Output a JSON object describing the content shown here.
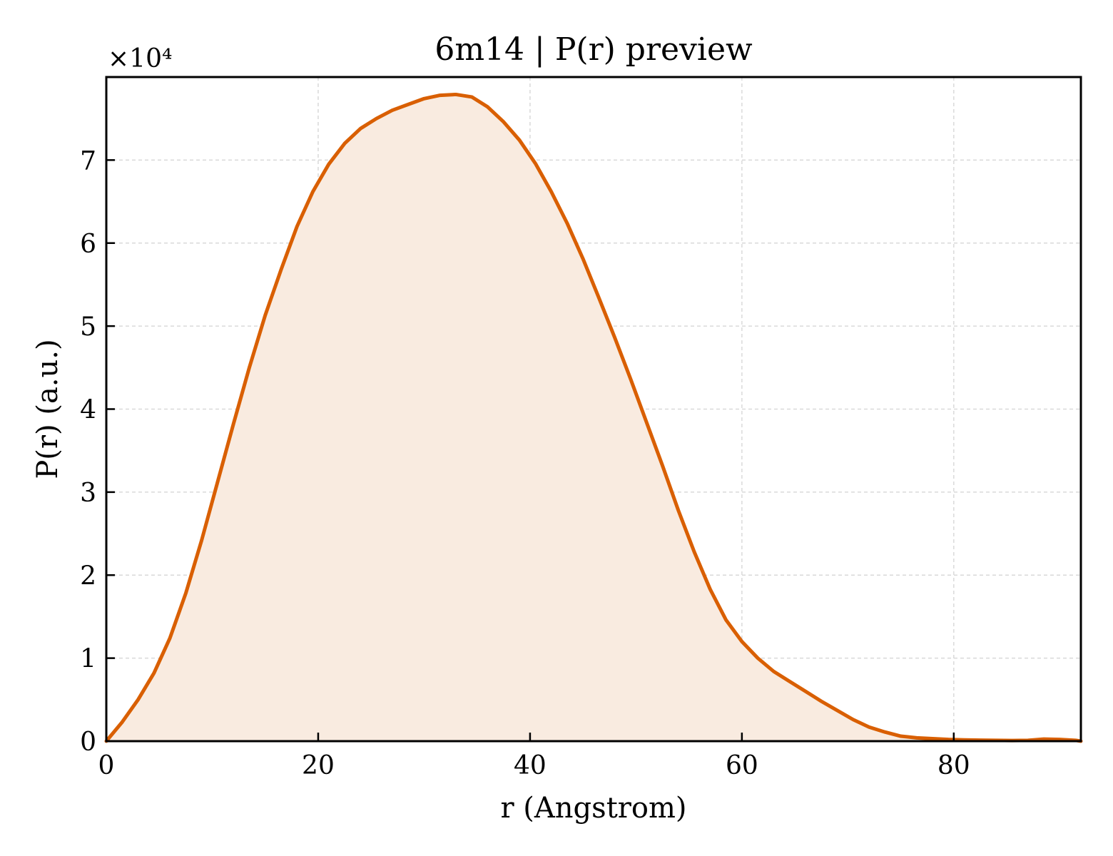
{
  "chart_data": {
    "type": "area",
    "title": "6m14 | P(r) preview",
    "xlabel": "r (Angstrom)",
    "ylabel": "P(r) (a.u.)",
    "y_multiplier_label": "×10⁴",
    "y_multiplier": 10000,
    "xlim": [
      0,
      92
    ],
    "ylim": [
      0,
      8
    ],
    "x_ticks": [
      0,
      20,
      40,
      60,
      80
    ],
    "x_tick_labels": [
      "0",
      "20",
      "40",
      "60",
      "80"
    ],
    "y_ticks": [
      0,
      1,
      2,
      3,
      4,
      5,
      6,
      7
    ],
    "y_tick_labels": [
      "0",
      "1",
      "2",
      "3",
      "4",
      "5",
      "6",
      "7"
    ],
    "grid": true,
    "colors": {
      "line": "#d95f02",
      "fill": "#f9ebe0",
      "grid": "#d9d9d9"
    },
    "series": [
      {
        "x": [
          0,
          1.5,
          3,
          4.5,
          6,
          7.5,
          9,
          10.5,
          12,
          13.5,
          15,
          16.5,
          18,
          19.5,
          21,
          22.5,
          24,
          25.5,
          27,
          28.5,
          30,
          31.5,
          33,
          34.5,
          36,
          37.5,
          39,
          40.5,
          42,
          43.5,
          45,
          46.5,
          48,
          49.5,
          51,
          52.5,
          54,
          55.5,
          57,
          58.5,
          60,
          61.5,
          63,
          64.5,
          66,
          67.5,
          69,
          70.5,
          72,
          73.5,
          75,
          76.5,
          78,
          79.5,
          81,
          82.5,
          84,
          85.5,
          87,
          88.5,
          90,
          91.5,
          92
        ],
        "y": [
          0.0,
          0.23,
          0.5,
          0.82,
          1.24,
          1.78,
          2.42,
          3.12,
          3.82,
          4.5,
          5.13,
          5.68,
          6.2,
          6.62,
          6.95,
          7.2,
          7.38,
          7.5,
          7.6,
          7.67,
          7.74,
          7.78,
          7.79,
          7.76,
          7.64,
          7.46,
          7.24,
          6.96,
          6.62,
          6.24,
          5.81,
          5.34,
          4.86,
          4.36,
          3.84,
          3.32,
          2.78,
          2.28,
          1.83,
          1.46,
          1.2,
          1.0,
          0.84,
          0.72,
          0.6,
          0.48,
          0.37,
          0.26,
          0.17,
          0.11,
          0.06,
          0.04,
          0.03,
          0.02,
          0.015,
          0.012,
          0.01,
          0.008,
          0.01,
          0.025,
          0.02,
          0.01,
          0.0
        ]
      }
    ]
  }
}
